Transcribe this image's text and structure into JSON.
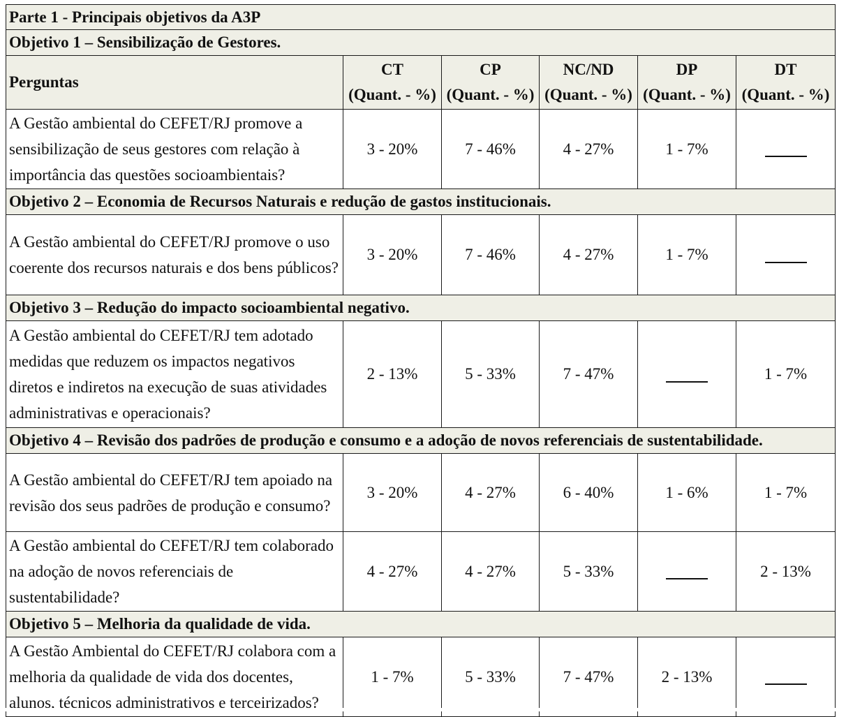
{
  "part_title": "Parte 1 - Principais objetivos da A3P",
  "header": {
    "questions_label": "Perguntas",
    "columns": [
      {
        "code": "CT",
        "sub": "(Quant. - %)"
      },
      {
        "code": "CP",
        "sub": "(Quant. - %)"
      },
      {
        "code": "NC/ND",
        "sub": "(Quant. - %)"
      },
      {
        "code": "DP",
        "sub": "(Quant. - %)"
      },
      {
        "code": "DT",
        "sub": "(Quant. - %)"
      }
    ]
  },
  "empty_marker": "_____",
  "objectives": [
    {
      "title": "Objetivo 1 – Sensibilização de Gestores.",
      "questions": [
        {
          "text": "A Gestão ambiental do CEFET/RJ promove a sensibilização de seus gestores com relação à importância das questões socioambientais?",
          "values": [
            "3 - 20%",
            "7 - 46%",
            "4 - 27%",
            "1 - 7%",
            ""
          ]
        }
      ]
    },
    {
      "title": "Objetivo 2 – Economia de Recursos Naturais e redução de gastos institucionais.",
      "questions": [
        {
          "text": "A Gestão ambiental do CEFET/RJ promove o uso coerente dos recursos naturais e dos bens públicos?",
          "values": [
            "3 - 20%",
            "7 - 46%",
            "4 - 27%",
            "1 - 7%",
            ""
          ]
        }
      ]
    },
    {
      "title": "Objetivo 3 – Redução do impacto socioambiental negativo.",
      "questions": [
        {
          "text": "A Gestão ambiental do CEFET/RJ tem adotado medidas que reduzem os impactos negativos diretos e indiretos na execução de suas atividades administrativas e operacionais?",
          "values": [
            "2 - 13%",
            "5 - 33%",
            "7 - 47%",
            "",
            "1 - 7%"
          ]
        }
      ]
    },
    {
      "title": "Objetivo 4 – Revisão dos padrões de produção e consumo e a adoção de novos referenciais de sustentabilidade.",
      "questions": [
        {
          "text": "A Gestão ambiental do CEFET/RJ tem apoiado na revisão dos seus padrões de produção e consumo?",
          "values": [
            "3 - 20%",
            "4 - 27%",
            "6 - 40%",
            "1 - 6%",
            "1 - 7%"
          ]
        },
        {
          "text": "A Gestão ambiental do CEFET/RJ tem colaborado na adoção de novos referenciais de sustentabilidade?",
          "values": [
            "4 - 27%",
            "4 - 27%",
            "5 - 33%",
            "",
            "2 - 13%"
          ]
        }
      ]
    },
    {
      "title": "Objetivo 5 – Melhoria da qualidade de vida.",
      "questions": [
        {
          "text": "A Gestão Ambiental do CEFET/RJ colabora com a melhoria da qualidade de vida dos docentes, alunos, técnicos administrativos e terceirizados?",
          "values": [
            "1 - 7%",
            "5 - 33%",
            "7 - 47%",
            "2 - 13%",
            ""
          ]
        }
      ]
    }
  ]
}
